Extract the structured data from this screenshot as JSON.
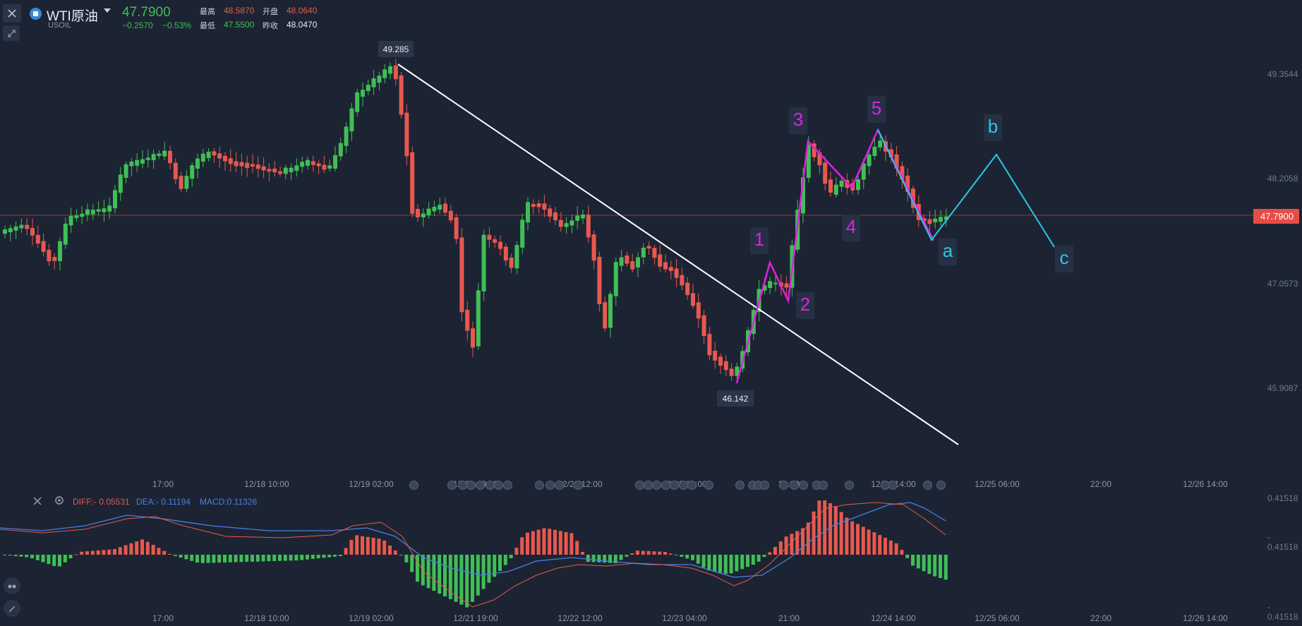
{
  "header": {
    "symbol_name": "WTI原油",
    "symbol_code": "USOIL",
    "last_price": "47.7900",
    "change": "−0.2570",
    "change_pct": "−0.53%",
    "high_label": "最高",
    "high_value": "48.5870",
    "open_label": "开盘",
    "open_value": "48.0640",
    "low_label": "最低",
    "low_value": "47.5500",
    "prev_close_label": "昨收",
    "prev_close_value": "48.0470"
  },
  "price_axis": [
    "49.3544",
    "48.2058",
    "47.0573",
    "45.9087"
  ],
  "current_price_tag": "47.7900",
  "time_axis": [
    "17:00",
    "12/18 10:00",
    "12/19 02:00",
    "12/21 19:00",
    "12/22 12:00",
    "12/23 04:00",
    "21:00",
    "12/24 14:00",
    "12/25 06:00",
    "22:00",
    "12/26 14:00"
  ],
  "annotations": {
    "high_point": "49.285",
    "low_point": "46.142",
    "wave_labels": [
      "1",
      "2",
      "3",
      "4",
      "5"
    ],
    "correction_labels": [
      "a",
      "b",
      "c"
    ]
  },
  "macd": {
    "diff": "DIFF:- 0.05531",
    "dea": "DEA:- 0.11194",
    "macd": "MACD:0.11326",
    "axis_top": "0.41518",
    "axis_mid": "- 0.41518",
    "axis_bottom": "- 0.41518"
  },
  "colors": {
    "background": "#1c2433",
    "up": "#3fbf55",
    "down": "#e8584f",
    "wave": "#e020e0",
    "correction": "#2ec8e0",
    "trendline": "#ffffff",
    "diff_line": "#e8584f",
    "dea_line": "#4a7ee8"
  },
  "icons": [
    "close-icon",
    "expand-icon",
    "symbol-logo-icon",
    "dropdown-icon",
    "settings-icon",
    "pen-icon",
    "eye-icon"
  ]
}
